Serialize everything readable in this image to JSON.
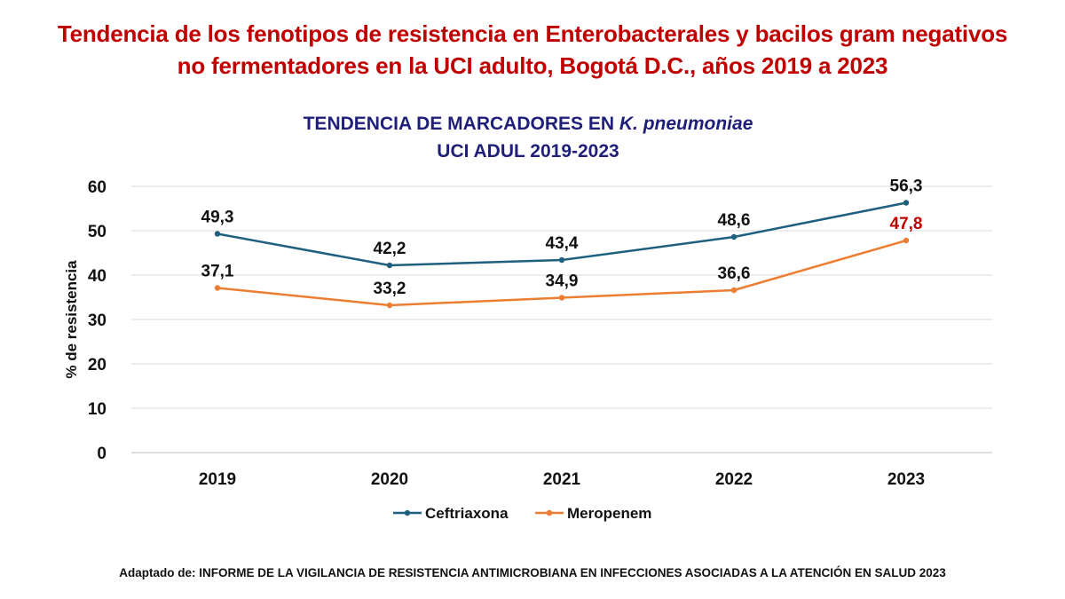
{
  "headline": {
    "line1": "Tendencia de los fenotipos de resistencia en Enterobacterales y bacilos gram negativos",
    "line2": "no fermentadores en la UCI adulto, Bogotá D.C., años 2019 a 2023"
  },
  "chart_title": {
    "line1_prefix": "TENDENCIA DE MARCADORES EN ",
    "line1_italic": "K. pneumoniae",
    "line2": "UCI ADUL  2019-2023"
  },
  "source_note": "Adaptado de:  INFORME DE LA VIGILANCIA DE RESISTENCIA ANTIMICROBIANA EN INFECCIONES ASOCIADAS A LA ATENCIÓN EN SALUD 2023",
  "chart_data": {
    "type": "line",
    "title": "TENDENCIA DE MARCADORES EN K. pneumoniae UCI ADUL  2019-2023",
    "xlabel": "",
    "ylabel": "% de resistencia",
    "categories": [
      "2019",
      "2020",
      "2021",
      "2022",
      "2023"
    ],
    "ylim": [
      0,
      60
    ],
    "yticks": [
      "0",
      "10",
      "20",
      "30",
      "40",
      "50",
      "60"
    ],
    "grid": true,
    "legend_position": "bottom",
    "series": [
      {
        "name": "Ceftriaxona",
        "color": "#1f5f7f",
        "values": [
          49.3,
          42.2,
          43.4,
          48.6,
          56.3
        ],
        "labels": [
          "49,3",
          "42,2",
          "43,4",
          "48,6",
          "56,3"
        ],
        "label_colors": [
          "#111111",
          "#111111",
          "#111111",
          "#111111",
          "#111111"
        ]
      },
      {
        "name": "Meropenem",
        "color": "#ed7d31",
        "values": [
          37.1,
          33.2,
          34.9,
          36.6,
          47.8
        ],
        "labels": [
          "37,1",
          "33,2",
          "34,9",
          "36,6",
          "47,8"
        ],
        "label_colors": [
          "#111111",
          "#111111",
          "#111111",
          "#111111",
          "#c00000"
        ]
      }
    ]
  }
}
